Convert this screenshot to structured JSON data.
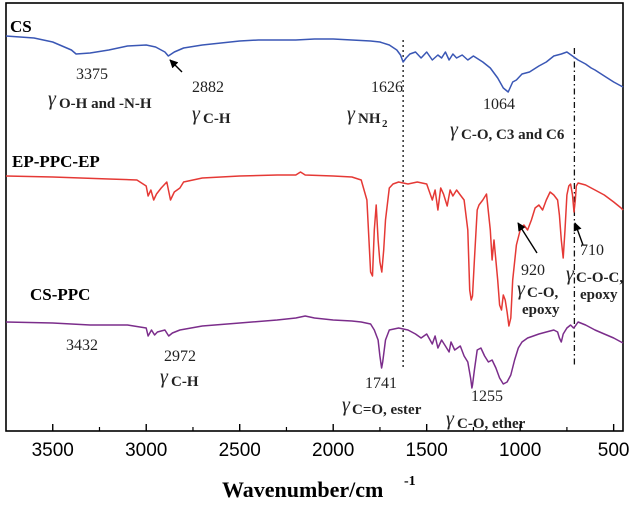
{
  "chart_data": {
    "type": "line",
    "title": "",
    "xlabel": "Wavenumber/cm",
    "xlabel_sup": "-1",
    "ylabel": "",
    "xlim": [
      3750,
      450
    ],
    "x_reversed": true,
    "y_axis_shown": false,
    "grid": false,
    "legend": "none",
    "xticks": [
      3500,
      3000,
      2500,
      2000,
      1500,
      1000,
      500
    ],
    "xtick_labels": [
      "3500",
      "3000",
      "2500",
      "2000",
      "1500",
      "1000",
      "500"
    ],
    "series": [
      {
        "name": "CS",
        "color": "#3a57b5",
        "points": [
          [
            3750,
            36
          ],
          [
            3600,
            38
          ],
          [
            3500,
            42
          ],
          [
            3400,
            50
          ],
          [
            3375,
            54
          ],
          [
            3300,
            53
          ],
          [
            3200,
            50
          ],
          [
            3100,
            46
          ],
          [
            3000,
            45
          ],
          [
            2950,
            47
          ],
          [
            2900,
            52
          ],
          [
            2882,
            56
          ],
          [
            2850,
            52
          ],
          [
            2800,
            48
          ],
          [
            2700,
            45
          ],
          [
            2600,
            43
          ],
          [
            2500,
            41
          ],
          [
            2400,
            40
          ],
          [
            2300,
            40
          ],
          [
            2200,
            40
          ],
          [
            2100,
            39
          ],
          [
            2000,
            39
          ],
          [
            1900,
            40
          ],
          [
            1800,
            41
          ],
          [
            1750,
            42
          ],
          [
            1700,
            45
          ],
          [
            1660,
            50
          ],
          [
            1640,
            55
          ],
          [
            1626,
            62
          ],
          [
            1610,
            58
          ],
          [
            1590,
            54
          ],
          [
            1560,
            52
          ],
          [
            1530,
            58
          ],
          [
            1500,
            52
          ],
          [
            1470,
            60
          ],
          [
            1440,
            55
          ],
          [
            1420,
            58
          ],
          [
            1400,
            52
          ],
          [
            1380,
            60
          ],
          [
            1360,
            54
          ],
          [
            1340,
            58
          ],
          [
            1310,
            55
          ],
          [
            1280,
            60
          ],
          [
            1250,
            56
          ],
          [
            1200,
            62
          ],
          [
            1160,
            68
          ],
          [
            1120,
            78
          ],
          [
            1090,
            88
          ],
          [
            1064,
            92
          ],
          [
            1040,
            82
          ],
          [
            1020,
            80
          ],
          [
            990,
            74
          ],
          [
            950,
            72
          ],
          [
            900,
            66
          ],
          [
            860,
            62
          ],
          [
            820,
            56
          ],
          [
            780,
            54
          ],
          [
            750,
            52
          ],
          [
            720,
            56
          ],
          [
            690,
            60
          ],
          [
            650,
            64
          ],
          [
            620,
            68
          ],
          [
            600,
            70
          ],
          [
            550,
            76
          ],
          [
            500,
            82
          ],
          [
            460,
            86
          ],
          [
            450,
            87
          ]
        ]
      },
      {
        "name": "EP-PPC-EP",
        "color": "#e53935",
        "points": [
          [
            3750,
            176
          ],
          [
            3500,
            177
          ],
          [
            3200,
            179
          ],
          [
            3050,
            180
          ],
          [
            3000,
            186
          ],
          [
            2990,
            196
          ],
          [
            2975,
            190
          ],
          [
            2960,
            200
          ],
          [
            2945,
            194
          ],
          [
            2920,
            188
          ],
          [
            2890,
            182
          ],
          [
            2870,
            200
          ],
          [
            2850,
            192
          ],
          [
            2820,
            188
          ],
          [
            2800,
            182
          ],
          [
            2700,
            178
          ],
          [
            2500,
            176
          ],
          [
            2300,
            175
          ],
          [
            2200,
            175
          ],
          [
            2175,
            172
          ],
          [
            2150,
            175
          ],
          [
            2000,
            176
          ],
          [
            1900,
            177
          ],
          [
            1850,
            180
          ],
          [
            1820,
            200
          ],
          [
            1800,
            272
          ],
          [
            1790,
            276
          ],
          [
            1780,
            230
          ],
          [
            1770,
            205
          ],
          [
            1760,
            240
          ],
          [
            1750,
            262
          ],
          [
            1740,
            272
          ],
          [
            1730,
            250
          ],
          [
            1720,
            220
          ],
          [
            1700,
            188
          ],
          [
            1680,
            184
          ],
          [
            1650,
            182
          ],
          [
            1600,
            184
          ],
          [
            1550,
            182
          ],
          [
            1500,
            184
          ],
          [
            1470,
            200
          ],
          [
            1455,
            190
          ],
          [
            1440,
            210
          ],
          [
            1425,
            188
          ],
          [
            1410,
            194
          ],
          [
            1390,
            206
          ],
          [
            1375,
            190
          ],
          [
            1360,
            196
          ],
          [
            1340,
            190
          ],
          [
            1320,
            195
          ],
          [
            1300,
            200
          ],
          [
            1280,
            230
          ],
          [
            1270,
            290
          ],
          [
            1262,
            300
          ],
          [
            1255,
            296
          ],
          [
            1245,
            260
          ],
          [
            1230,
            210
          ],
          [
            1220,
            205
          ],
          [
            1200,
            200
          ],
          [
            1180,
            194
          ],
          [
            1160,
            230
          ],
          [
            1150,
            260
          ],
          [
            1140,
            240
          ],
          [
            1120,
            280
          ],
          [
            1110,
            305
          ],
          [
            1100,
            310
          ],
          [
            1090,
            295
          ],
          [
            1080,
            300
          ],
          [
            1070,
            312
          ],
          [
            1060,
            326
          ],
          [
            1050,
            318
          ],
          [
            1040,
            280
          ],
          [
            1020,
            245
          ],
          [
            1000,
            230
          ],
          [
            980,
            225
          ],
          [
            960,
            230
          ],
          [
            940,
            220
          ],
          [
            920,
            208
          ],
          [
            900,
            205
          ],
          [
            880,
            210
          ],
          [
            860,
            200
          ],
          [
            840,
            192
          ],
          [
            820,
            195
          ],
          [
            800,
            200
          ],
          [
            790,
            215
          ],
          [
            780,
            240
          ],
          [
            770,
            258
          ],
          [
            760,
            230
          ],
          [
            750,
            195
          ],
          [
            740,
            186
          ],
          [
            730,
            184
          ],
          [
            720,
            195
          ],
          [
            712,
            212
          ],
          [
            705,
            200
          ],
          [
            700,
            186
          ],
          [
            690,
            183
          ],
          [
            650,
            185
          ],
          [
            600,
            190
          ],
          [
            550,
            195
          ],
          [
            500,
            202
          ],
          [
            460,
            208
          ],
          [
            450,
            210
          ]
        ]
      },
      {
        "name": "CS-PPC",
        "color": "#7b2d8b",
        "points": [
          [
            3750,
            322
          ],
          [
            3500,
            323
          ],
          [
            3300,
            325
          ],
          [
            3100,
            325
          ],
          [
            3000,
            328
          ],
          [
            2990,
            336
          ],
          [
            2972,
            330
          ],
          [
            2955,
            335
          ],
          [
            2940,
            332
          ],
          [
            2900,
            330
          ],
          [
            2880,
            336
          ],
          [
            2860,
            333
          ],
          [
            2820,
            330
          ],
          [
            2700,
            326
          ],
          [
            2500,
            323
          ],
          [
            2300,
            320
          ],
          [
            2200,
            318
          ],
          [
            2150,
            316
          ],
          [
            2100,
            318
          ],
          [
            2000,
            320
          ],
          [
            1900,
            321
          ],
          [
            1850,
            322
          ],
          [
            1800,
            324
          ],
          [
            1780,
            330
          ],
          [
            1760,
            340
          ],
          [
            1750,
            356
          ],
          [
            1741,
            368
          ],
          [
            1735,
            362
          ],
          [
            1720,
            340
          ],
          [
            1700,
            330
          ],
          [
            1650,
            328
          ],
          [
            1600,
            330
          ],
          [
            1560,
            334
          ],
          [
            1530,
            338
          ],
          [
            1500,
            334
          ],
          [
            1470,
            344
          ],
          [
            1455,
            336
          ],
          [
            1440,
            348
          ],
          [
            1420,
            340
          ],
          [
            1400,
            346
          ],
          [
            1380,
            352
          ],
          [
            1370,
            342
          ],
          [
            1350,
            350
          ],
          [
            1320,
            346
          ],
          [
            1300,
            356
          ],
          [
            1280,
            362
          ],
          [
            1265,
            378
          ],
          [
            1258,
            388
          ],
          [
            1255,
            385
          ],
          [
            1245,
            370
          ],
          [
            1230,
            350
          ],
          [
            1210,
            348
          ],
          [
            1190,
            356
          ],
          [
            1170,
            362
          ],
          [
            1150,
            360
          ],
          [
            1130,
            368
          ],
          [
            1110,
            378
          ],
          [
            1090,
            384
          ],
          [
            1070,
            382
          ],
          [
            1050,
            375
          ],
          [
            1030,
            360
          ],
          [
            1010,
            348
          ],
          [
            990,
            342
          ],
          [
            960,
            338
          ],
          [
            930,
            336
          ],
          [
            900,
            334
          ],
          [
            860,
            332
          ],
          [
            820,
            330
          ],
          [
            800,
            332
          ],
          [
            790,
            338
          ],
          [
            780,
            342
          ],
          [
            770,
            334
          ],
          [
            750,
            328
          ],
          [
            730,
            325
          ],
          [
            715,
            328
          ],
          [
            705,
            326
          ],
          [
            690,
            322
          ],
          [
            650,
            325
          ],
          [
            600,
            330
          ],
          [
            550,
            334
          ],
          [
            500,
            338
          ],
          [
            460,
            342
          ],
          [
            450,
            343
          ]
        ]
      }
    ],
    "series_labels": [
      {
        "key": "cs",
        "text": "CS"
      },
      {
        "key": "ep",
        "text": "EP-PPC-EP"
      },
      {
        "key": "csppc",
        "text": "CS-PPC"
      }
    ],
    "annotations": {
      "a3375": "3375",
      "s3375": "O-H and -N-H",
      "a2882": "2882",
      "s2882": "C-H",
      "a1626": "1626",
      "s1626": "NH",
      "s1626sub": "2",
      "a1064": "1064",
      "s1064": "C-O, C3 and C6",
      "a920": "920",
      "s920a": "C-O,",
      "s920b": "epoxy",
      "a710": "710",
      "s710a": "C-O-C,",
      "s710b": "epoxy",
      "a3432": "3432",
      "a2972": "2972",
      "s2972": "C-H",
      "a1741": "1741",
      "s1741": "C=O, ester",
      "a1255": "1255",
      "s1255": "C-O, ether",
      "gamma": "γ"
    },
    "reference_lines": [
      1626,
      710
    ]
  }
}
